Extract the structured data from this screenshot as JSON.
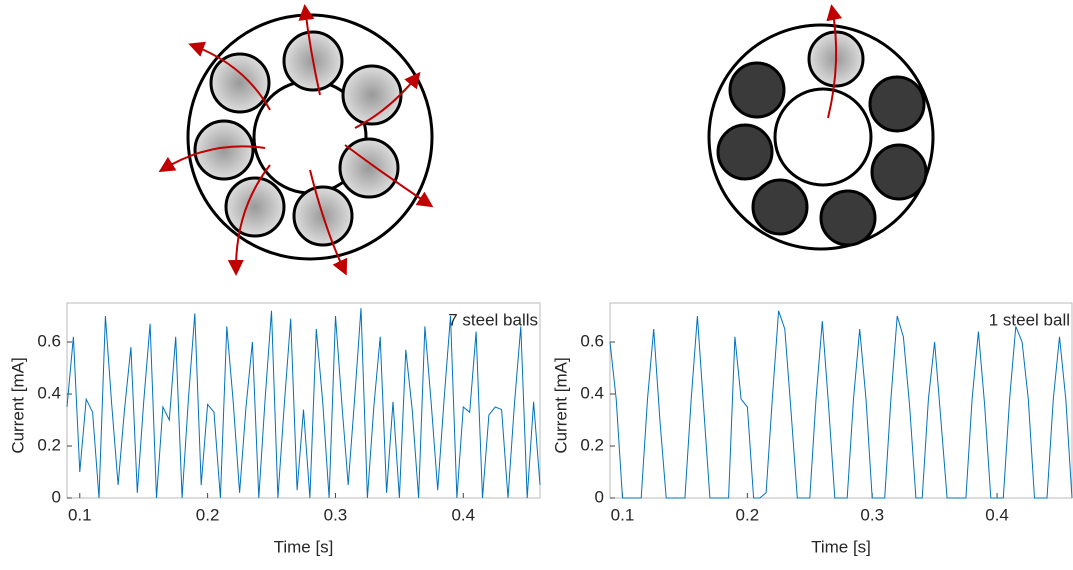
{
  "chart_data": [
    {
      "type": "line",
      "annotation": "7 steel balls",
      "x_label": "Time [s]",
      "y_label": "Current [mA]",
      "color": "#0072bd",
      "x": [
        0.09,
        0.095,
        0.1,
        0.105,
        0.11,
        0.115,
        0.12,
        0.125,
        0.13,
        0.135,
        0.14,
        0.145,
        0.15,
        0.155,
        0.16,
        0.165,
        0.17,
        0.175,
        0.18,
        0.185,
        0.19,
        0.195,
        0.2,
        0.205,
        0.21,
        0.215,
        0.22,
        0.225,
        0.23,
        0.235,
        0.24,
        0.245,
        0.25,
        0.255,
        0.26,
        0.265,
        0.27,
        0.275,
        0.28,
        0.285,
        0.29,
        0.295,
        0.3,
        0.305,
        0.31,
        0.315,
        0.32,
        0.325,
        0.33,
        0.335,
        0.34,
        0.345,
        0.35,
        0.355,
        0.36,
        0.365,
        0.37,
        0.375,
        0.38,
        0.385,
        0.39,
        0.395,
        0.4,
        0.405,
        0.41,
        0.415,
        0.42,
        0.425,
        0.43,
        0.435,
        0.44,
        0.445,
        0.45,
        0.455,
        0.46
      ],
      "values": [
        0.35,
        0.62,
        0.1,
        0.38,
        0.33,
        0.0,
        0.7,
        0.36,
        0.05,
        0.34,
        0.58,
        0.02,
        0.37,
        0.67,
        0.0,
        0.35,
        0.3,
        0.62,
        0.0,
        0.38,
        0.71,
        0.05,
        0.36,
        0.33,
        0.0,
        0.66,
        0.37,
        0.02,
        0.35,
        0.6,
        0.0,
        0.38,
        0.72,
        0.0,
        0.36,
        0.69,
        0.03,
        0.34,
        0.0,
        0.65,
        0.37,
        0.0,
        0.7,
        0.36,
        0.05,
        0.38,
        0.73,
        0.0,
        0.35,
        0.62,
        0.02,
        0.37,
        0.0,
        0.57,
        0.34,
        0.0,
        0.66,
        0.36,
        0.03,
        0.38,
        0.7,
        0.0,
        0.35,
        0.33,
        0.64,
        0.0,
        0.32,
        0.35,
        0.34,
        0.0,
        0.36,
        0.66,
        0.0,
        0.37,
        0.05
      ],
      "xlim": [
        0.09,
        0.46
      ],
      "xticks": [
        0.1,
        0.2,
        0.3,
        0.4
      ],
      "ylim": [
        0,
        0.75
      ],
      "yticks": [
        0,
        0.2,
        0.4,
        0.6
      ]
    },
    {
      "type": "line",
      "annotation": "1 steel ball",
      "x_label": "Time [s]",
      "y_label": "Current [mA]",
      "color": "#0072bd",
      "x": [
        0.09,
        0.095,
        0.1,
        0.105,
        0.11,
        0.115,
        0.12,
        0.125,
        0.13,
        0.135,
        0.14,
        0.145,
        0.15,
        0.155,
        0.16,
        0.165,
        0.17,
        0.175,
        0.18,
        0.185,
        0.19,
        0.195,
        0.2,
        0.205,
        0.21,
        0.215,
        0.22,
        0.225,
        0.23,
        0.235,
        0.24,
        0.245,
        0.25,
        0.255,
        0.26,
        0.265,
        0.27,
        0.275,
        0.28,
        0.285,
        0.29,
        0.295,
        0.3,
        0.305,
        0.31,
        0.315,
        0.32,
        0.325,
        0.33,
        0.335,
        0.34,
        0.345,
        0.35,
        0.355,
        0.36,
        0.365,
        0.37,
        0.375,
        0.38,
        0.385,
        0.39,
        0.395,
        0.4,
        0.405,
        0.41,
        0.415,
        0.42,
        0.425,
        0.43,
        0.435,
        0.44,
        0.445,
        0.45,
        0.455,
        0.46
      ],
      "values": [
        0.6,
        0.38,
        0,
        0,
        0,
        0,
        0.38,
        0.65,
        0.3,
        0,
        0,
        0,
        0,
        0.38,
        0.7,
        0.35,
        0,
        0,
        0,
        0,
        0.62,
        0.38,
        0.35,
        0,
        0,
        0.02,
        0.38,
        0.72,
        0.65,
        0.33,
        0,
        0,
        0,
        0.38,
        0.68,
        0.36,
        0,
        0,
        0,
        0.38,
        0.65,
        0.38,
        0,
        0,
        0,
        0.38,
        0.7,
        0.62,
        0.35,
        0,
        0,
        0.38,
        0.6,
        0.3,
        0,
        0,
        0,
        0,
        0.38,
        0.64,
        0.36,
        0,
        0,
        0,
        0.38,
        0.66,
        0.6,
        0.38,
        0,
        0,
        0,
        0.38,
        0.62,
        0.38,
        0
      ],
      "xlim": [
        0.09,
        0.46
      ],
      "xticks": [
        0.1,
        0.2,
        0.3,
        0.4
      ],
      "ylim": [
        0,
        0.75
      ],
      "yticks": [
        0,
        0.2,
        0.4,
        0.6
      ]
    }
  ]
}
